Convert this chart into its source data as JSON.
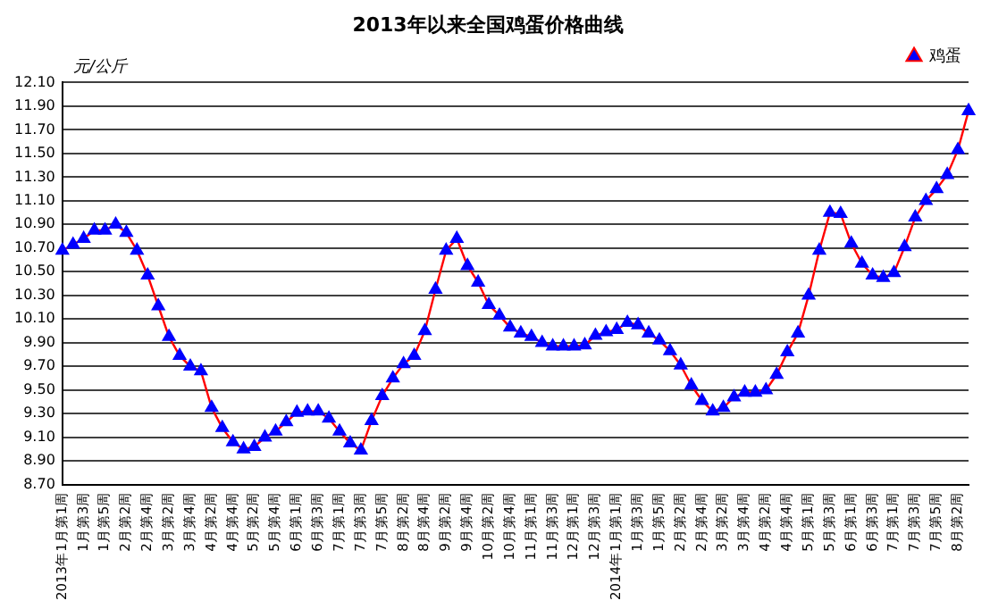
{
  "chart_data": {
    "type": "line",
    "title": "2013年以来全国鸡蛋价格曲线",
    "ylabel": "元/公斤",
    "categories": [
      "2013年1月第1周",
      null,
      "1月第3周",
      null,
      "1月第5周",
      null,
      "2月第2周",
      null,
      "2月第4周",
      null,
      "3月第2周",
      null,
      "3月第4周",
      null,
      "4月第2周",
      null,
      "4月第4周",
      null,
      "5月第2周",
      null,
      "5月第4周",
      null,
      "6月第1周",
      null,
      "6月第3周",
      null,
      "7月第1周",
      null,
      "7月第3周",
      null,
      "7月第5周",
      null,
      "8月第2周",
      null,
      "8月第4周",
      null,
      "9月第2周",
      null,
      "9月第4周",
      null,
      "10月第2周",
      null,
      "10月第4周",
      null,
      "11月第1周",
      null,
      "11月第3周",
      null,
      "12月第1周",
      null,
      "12月第3周",
      null,
      "2014年1月第1周",
      null,
      "1月第3周",
      null,
      "1月第5周",
      null,
      "2月第2周",
      null,
      "2月第4周",
      null,
      "3月第2周",
      null,
      "3月第4周",
      null,
      "4月第2周",
      null,
      "4月第4周",
      null,
      "5月第1周",
      null,
      "5月第3周",
      null,
      "6月第1周",
      null,
      "6月第3周",
      null,
      "7月第1周",
      null,
      "7月第3周",
      null,
      "7月第5周",
      null,
      "8月第2周",
      null
    ],
    "series": [
      {
        "name": "鸡蛋",
        "color": "#ff0000",
        "colors": [
          "#0000ff",
          "#0000ff",
          "#0000ff",
          "#0000ff",
          "#0000ff",
          "#0000ff",
          "#0000ff",
          "#0000ff",
          "#0000ff",
          "#0000ff",
          "#0000ff",
          "#0000ff",
          "#0000ff",
          "#0000ff",
          "#0000ff",
          "#0000ff",
          "#0000ff",
          "#0000ff",
          "#0000ff",
          "#0000ff",
          "#0000ff",
          "#0000ff",
          "#0000ff",
          "#0000ff",
          "#0000ff",
          "#0000ff",
          "#0000ff",
          "#0000ff",
          "#0000ff",
          "#0000ff",
          "#0000ff",
          "#0000ff",
          "#0000ff",
          "#0000ff",
          "#0000ff",
          "#0000ff",
          "#0000ff",
          "#0000ff",
          "#0000ff",
          "#0000ff",
          "#0000ff",
          "#0000ff",
          "#0000ff",
          "#0000ff",
          "#0000ff",
          "#0000ff",
          "#0000ff",
          "#0000ff",
          "#0000ff",
          "#0000ff",
          "#0000ff",
          "#0000ff",
          "#0000ff",
          "#0000ff",
          "#0000ff",
          "#0000ff",
          "#0000ff",
          "#0000ff",
          "#0000ff",
          "#0000ff",
          "#0000ff",
          "#0000ff",
          "#0000ff",
          "#0000ff",
          "#0000ff",
          "#0000ff",
          "#0000ff",
          "#0000ff",
          "#0000ff",
          "#0000ff",
          "#0000ff",
          "#0000ff",
          "#0000ff",
          "#0000ff",
          "#0000ff",
          "#0000ff",
          "#0000ff",
          "#0000ff",
          "#0000ff",
          "#0000ff",
          "#0000ff",
          "#0000ff",
          "#0000ff",
          "#0000ff",
          "#0000ff",
          "#0000ff"
        ],
        "values": [
          10.68,
          10.73,
          10.78,
          10.85,
          10.85,
          10.9,
          10.83,
          10.68,
          10.47,
          10.21,
          9.95,
          9.79,
          9.7,
          9.66,
          9.35,
          9.18,
          9.06,
          9.0,
          9.02,
          9.1,
          9.15,
          9.23,
          9.31,
          9.32,
          9.32,
          9.26,
          9.15,
          9.05,
          8.99,
          9.24,
          9.45,
          9.6,
          9.72,
          9.79,
          10.0,
          10.35,
          10.68,
          10.78,
          10.55,
          10.41,
          10.22,
          10.13,
          10.03,
          9.98,
          9.95,
          9.9,
          9.87,
          9.87,
          9.87,
          9.88,
          9.96,
          9.99,
          10.01,
          10.07,
          10.05,
          9.98,
          9.92,
          9.83,
          9.71,
          9.54,
          9.41,
          9.32,
          9.35,
          9.44,
          9.48,
          9.48,
          9.5,
          9.63,
          9.82,
          9.98,
          10.3,
          10.68,
          11.0,
          10.99,
          10.74,
          10.57,
          10.47,
          10.45,
          10.49,
          10.71,
          10.96,
          11.1,
          11.2,
          11.32,
          11.53,
          11.86
        ]
      }
    ],
    "ylim": [
      8.7,
      12.1
    ],
    "yticks": [
      {
        "value": 8.7,
        "label": "8.70"
      },
      {
        "value": 8.9,
        "label": "8.90"
      },
      {
        "value": 9.1,
        "label": "9.10"
      },
      {
        "value": 9.3,
        "label": "9.30"
      },
      {
        "value": 9.5,
        "label": "9.50"
      },
      {
        "value": 9.7,
        "label": "9.70"
      },
      {
        "value": 9.9,
        "label": "9.90"
      },
      {
        "value": 10.1,
        "label": "10.10"
      },
      {
        "value": 10.3,
        "label": "10.30"
      },
      {
        "value": 10.5,
        "label": "10.50"
      },
      {
        "value": 10.7,
        "label": "10.70"
      },
      {
        "value": 10.9,
        "label": "10.90"
      },
      {
        "value": 11.1,
        "label": "11.10"
      },
      {
        "value": 11.3,
        "label": "11.30"
      },
      {
        "value": 11.5,
        "label": "11.50"
      },
      {
        "value": 11.7,
        "label": "11.70"
      },
      {
        "value": 11.9,
        "label": "11.90"
      },
      {
        "value": 12.1,
        "label": "12.10"
      }
    ],
    "grid": "y",
    "legend": "top right",
    "marker": "triangle",
    "line_style": "solid"
  }
}
